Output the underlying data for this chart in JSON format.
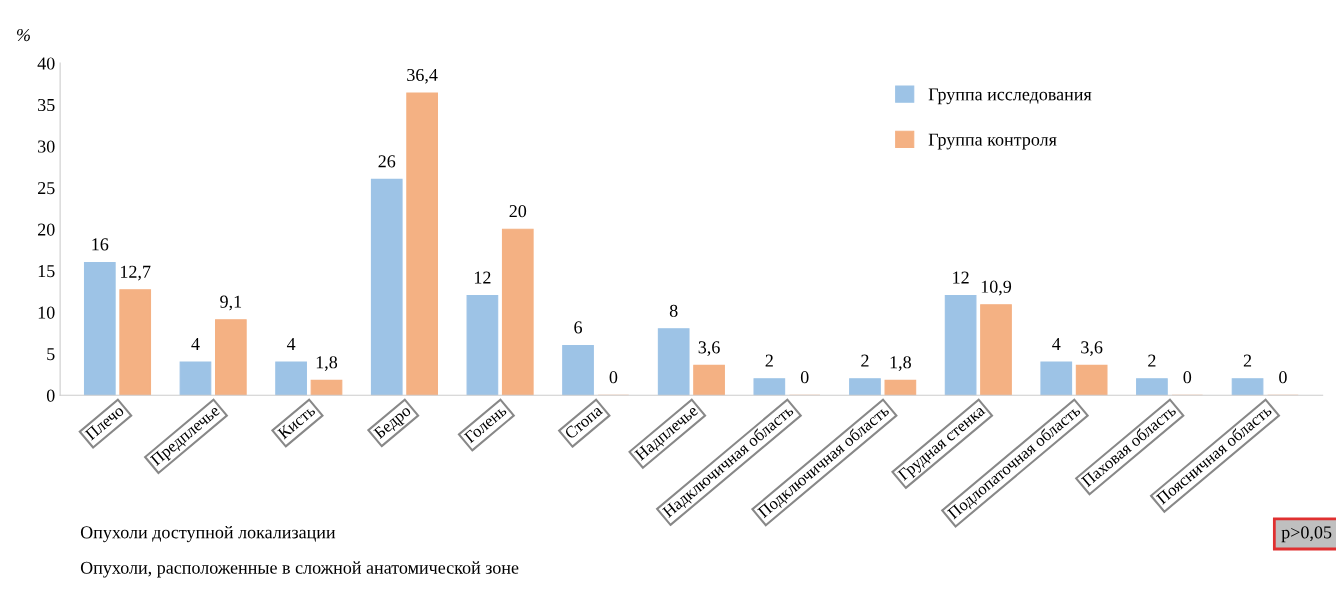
{
  "chart_data": {
    "type": "bar",
    "ylabel": "%",
    "categories": [
      "Плечо",
      "Предплечье",
      "Кисть",
      "Бедро",
      "Голень",
      "Стопа",
      "Надплечье",
      "Надключичная область",
      "Подключичная область",
      "Грудная стенка",
      "Подлопаточная область",
      "Паховая область",
      "Поясничная область"
    ],
    "series": [
      {
        "name": "Группа исследования",
        "color": "#9dc3e6",
        "values": [
          16,
          4,
          4,
          26,
          12,
          6,
          8,
          2,
          2,
          12,
          4,
          2,
          2
        ],
        "value_labels": [
          "16",
          "4",
          "4",
          "26",
          "12",
          "6",
          "8",
          "2",
          "2",
          "12",
          "4",
          "2",
          "2"
        ]
      },
      {
        "name": "Группа контроля",
        "color": "#f4b183",
        "values": [
          12.7,
          9.1,
          1.8,
          36.4,
          20,
          0,
          3.6,
          0,
          1.8,
          10.9,
          3.6,
          0,
          0
        ],
        "value_labels": [
          "12,7",
          "9,1",
          "1,8",
          "36,4",
          "20",
          "0",
          "3,6",
          "0",
          "1,8",
          "10,9",
          "3,6",
          "0",
          "0"
        ]
      }
    ],
    "ylim": [
      0,
      40
    ],
    "yticks": [
      0,
      5,
      10,
      15,
      20,
      25,
      30,
      35,
      40
    ],
    "grid": false,
    "legend": "top right",
    "annotations": [
      "Опухоли доступной локализации",
      "Опухоли, расположенные в сложной анатомической зоне",
      "p>0,05"
    ]
  }
}
